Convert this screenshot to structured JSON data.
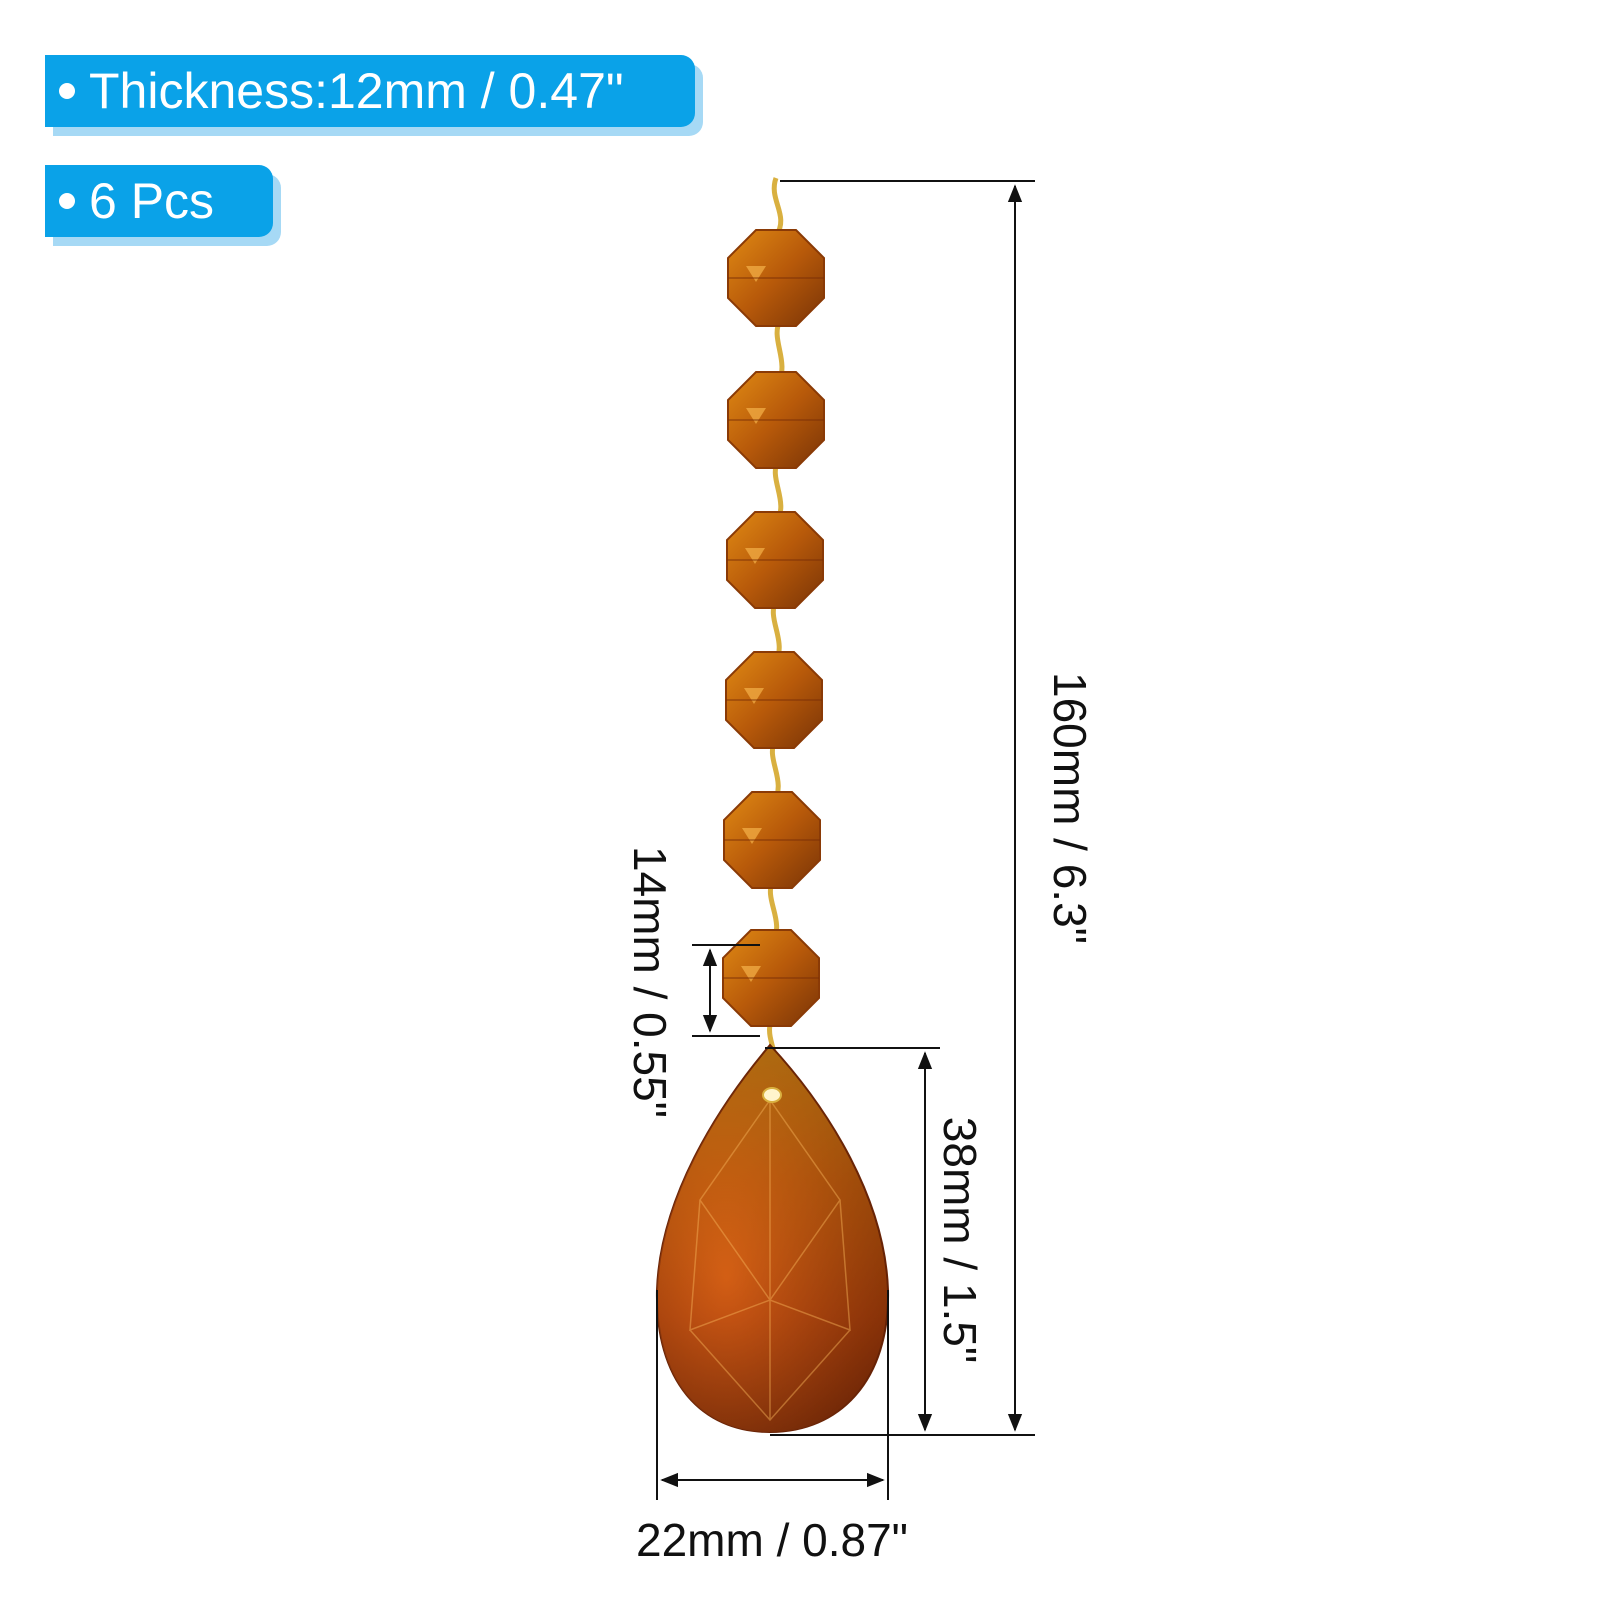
{
  "badges": {
    "thickness": "Thickness:12mm / 0.47\"",
    "count": "6 Pcs"
  },
  "dimensions": {
    "total_length": "160mm / 6.3\"",
    "bead_size": "14mm / 0.55\"",
    "drop_height": "38mm / 1.5\"",
    "drop_width": "22mm / 0.87\""
  },
  "colors": {
    "badge_bg": "#0aa2e8",
    "badge_shadow": "#a6d9f5",
    "crystal_dark": "#7a2e06",
    "crystal_mid": "#c2540c",
    "crystal_light": "#f2a91a",
    "wire": "#d9b040"
  },
  "beads_count": 6
}
